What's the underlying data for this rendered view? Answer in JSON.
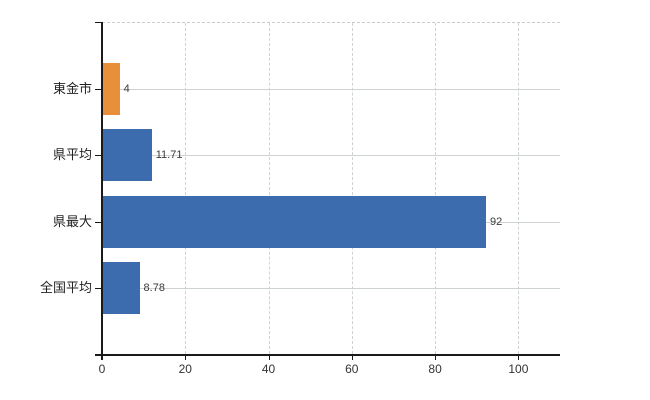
{
  "chart_data": {
    "type": "bar",
    "orientation": "horizontal",
    "title": "",
    "xlabel": "",
    "ylabel": "",
    "categories": [
      "東金市",
      "県平均",
      "県最大",
      "全国平均"
    ],
    "values": [
      4,
      11.71,
      92,
      8.78
    ],
    "value_labels": [
      "4",
      "11.71",
      "92",
      "8.78"
    ],
    "bar_colors": [
      "#e78f3b",
      "#3c6cae",
      "#3c6cae",
      "#3c6cae"
    ],
    "x_tick_labels": [
      "0",
      "20",
      "40",
      "60",
      "80",
      "100"
    ],
    "x_tick_values": [
      0,
      20,
      40,
      60,
      80,
      100
    ],
    "xlim": [
      0,
      110
    ],
    "grid": true,
    "legend": false
  },
  "colors": {
    "highlight_bar": "#e78f3b",
    "default_bar": "#3c6cae",
    "gridline": "#cdd3cd",
    "axis": "#1a1a1a",
    "text": "#333333"
  }
}
